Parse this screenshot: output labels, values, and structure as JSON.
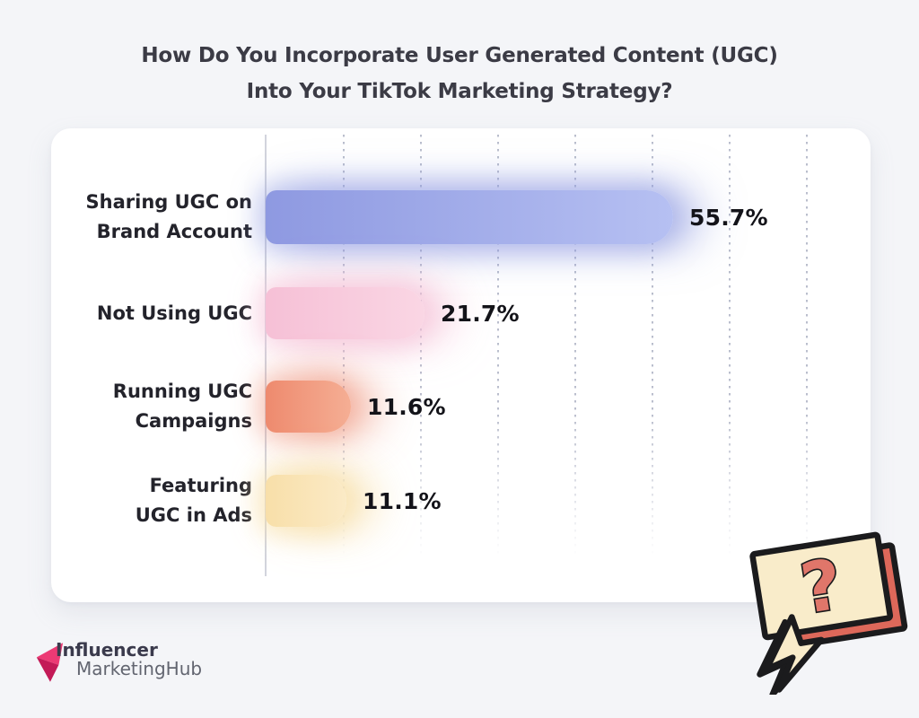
{
  "page": {
    "background": "#f4f5f8"
  },
  "title": {
    "line1": "How Do You Incorporate User Generated Content (UGC)",
    "line2": "Into Your TikTok Marketing Strategy?"
  },
  "chart_data": {
    "type": "bar",
    "orientation": "horizontal",
    "title": "How Do You Incorporate User Generated Content (UGC) Into Your TikTok Marketing Strategy?",
    "categories": [
      "Sharing UGC on Brand Account",
      "Not Using UGC",
      "Running UGC Campaigns",
      "Featuring UGC in Ads"
    ],
    "values": [
      55.7,
      21.7,
      11.6,
      11.1
    ],
    "value_labels": [
      "55.7%",
      "21.7%",
      "11.6%",
      "11.1%"
    ],
    "unit": "%",
    "xlabel": "",
    "ylabel": "",
    "xlim": [
      0,
      82.7
    ],
    "grid": "vertical dotted gridlines, unlabeled ticks",
    "legend": "none",
    "bar_colors": [
      "#8e99e1",
      "#f6c0d6",
      "#ee8a6e",
      "#f8dfa9"
    ]
  },
  "rows": [
    {
      "line1": "Sharing UGC on",
      "line2": "Brand Account",
      "value": 55.7,
      "value_label": "55.7%",
      "color_start": "#8e99e1",
      "color_end": "#b6c0f2",
      "glow": "rgba(142,153,225,0.50)"
    },
    {
      "line1": "Not Using UGC",
      "line2": "",
      "value": 21.7,
      "value_label": "21.7%",
      "color_start": "#f6c0d6",
      "color_end": "#fad6e4",
      "glow": "rgba(246,192,214,0.62)"
    },
    {
      "line1": "Running UGC",
      "line2": "Campaigns",
      "value": 11.6,
      "value_label": "11.6%",
      "color_start": "#ee8a6e",
      "color_end": "#f5ae94",
      "glow": "rgba(238,138,110,0.45)"
    },
    {
      "line1": "Featuring",
      "line2": "UGC in Ads",
      "value": 11.1,
      "value_label": "11.1%",
      "color_start": "#f8dfa9",
      "color_end": "#fbeac6",
      "glow": "rgba(248,223,169,0.70)"
    }
  ],
  "footer": {
    "brand_line1": "Influencer",
    "brand_line2": "MarketingHub",
    "brand_pink": "#ec3a74",
    "brand_dark_pink": "#c31a57"
  },
  "decor": {
    "question_mark": "?"
  }
}
